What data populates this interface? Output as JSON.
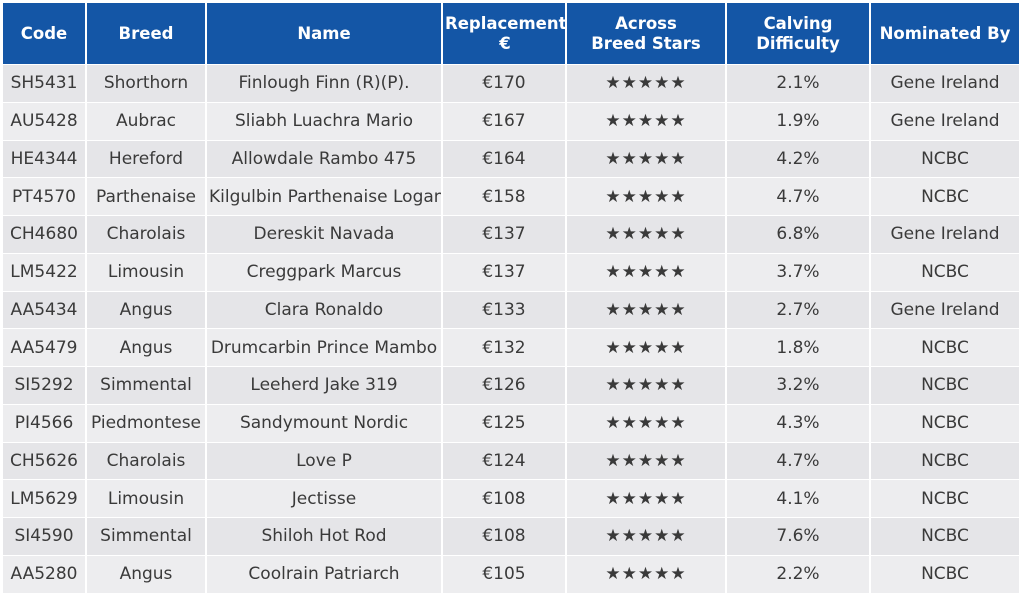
{
  "headers": {
    "code": "Code",
    "breed": "Breed",
    "name": "Name",
    "replacement": "Replacement €",
    "stars": "Across Breed Stars",
    "calving": "Calving Difficulty",
    "nominated": "Nominated By"
  },
  "star_glyph": "★★★★★",
  "star_color": "#f39c12",
  "header_color": "#1456a6",
  "rows": [
    {
      "code": "SH5431",
      "breed": "Shorthorn",
      "name": "Finlough Finn (R)(P).",
      "replacement": "€170",
      "stars": 5,
      "calving": "2.1%",
      "nominated": "Gene Ireland"
    },
    {
      "code": "AU5428",
      "breed": "Aubrac",
      "name": "Sliabh Luachra Mario",
      "replacement": "€167",
      "stars": 5,
      "calving": "1.9%",
      "nominated": "Gene Ireland"
    },
    {
      "code": "HE4344",
      "breed": "Hereford",
      "name": "Allowdale Rambo 475",
      "replacement": "€164",
      "stars": 5,
      "calving": "4.2%",
      "nominated": "NCBC"
    },
    {
      "code": "PT4570",
      "breed": "Parthenaise",
      "name": "Kilgulbin Parthenaise Logan",
      "replacement": "€158",
      "stars": 5,
      "calving": "4.7%",
      "nominated": "NCBC"
    },
    {
      "code": "CH4680",
      "breed": "Charolais",
      "name": "Dereskit Navada",
      "replacement": "€137",
      "stars": 5,
      "calving": "6.8%",
      "nominated": "Gene Ireland"
    },
    {
      "code": "LM5422",
      "breed": "Limousin",
      "name": "Creggpark Marcus",
      "replacement": "€137",
      "stars": 5,
      "calving": "3.7%",
      "nominated": "NCBC"
    },
    {
      "code": "AA5434",
      "breed": "Angus",
      "name": "Clara Ronaldo",
      "replacement": "€133",
      "stars": 5,
      "calving": "2.7%",
      "nominated": "Gene Ireland"
    },
    {
      "code": "AA5479",
      "breed": "Angus",
      "name": "Drumcarbin Prince Mambo",
      "replacement": "€132",
      "stars": 5,
      "calving": "1.8%",
      "nominated": "NCBC"
    },
    {
      "code": "SI5292",
      "breed": "Simmental",
      "name": "Leeherd Jake 319",
      "replacement": "€126",
      "stars": 5,
      "calving": "3.2%",
      "nominated": "NCBC"
    },
    {
      "code": "PI4566",
      "breed": "Piedmontese",
      "name": "Sandymount Nordic",
      "replacement": "€125",
      "stars": 5,
      "calving": "4.3%",
      "nominated": "NCBC"
    },
    {
      "code": "CH5626",
      "breed": "Charolais",
      "name": "Love P",
      "replacement": "€124",
      "stars": 5,
      "calving": "4.7%",
      "nominated": "NCBC"
    },
    {
      "code": "LM5629",
      "breed": "Limousin",
      "name": "Jectisse",
      "replacement": "€108",
      "stars": 5,
      "calving": "4.1%",
      "nominated": "NCBC"
    },
    {
      "code": "SI4590",
      "breed": "Simmental",
      "name": "Shiloh Hot Rod",
      "replacement": "€108",
      "stars": 5,
      "calving": "7.6%",
      "nominated": "NCBC"
    },
    {
      "code": "AA5280",
      "breed": "Angus",
      "name": "Coolrain Patriarch",
      "replacement": "€105",
      "stars": 5,
      "calving": "2.2%",
      "nominated": "NCBC"
    }
  ]
}
